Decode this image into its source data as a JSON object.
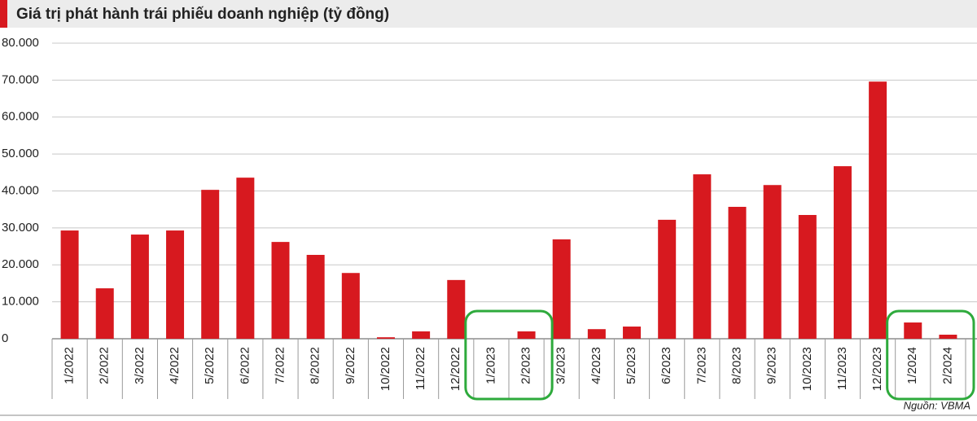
{
  "chart_data": {
    "type": "bar",
    "title": "Giá trị phát hành trái phiếu doanh nghiệp (tỷ đồng)",
    "source": "Nguồn: VBMA",
    "categories": [
      "1/2022",
      "2/2022",
      "3/2022",
      "4/2022",
      "5/2022",
      "6/2022",
      "7/2022",
      "8/2022",
      "9/2022",
      "10/2022",
      "11/2022",
      "12/2022",
      "1/2023",
      "2/2023",
      "3/2023",
      "4/2023",
      "5/2023",
      "6/2023",
      "7/2023",
      "8/2023",
      "9/2023",
      "10/2023",
      "11/2023",
      "12/2023",
      "1/2024",
      "2/2024"
    ],
    "values": [
      29300,
      13650,
      28200,
      29300,
      40300,
      43600,
      26200,
      22700,
      17800,
      400,
      2000,
      15900,
      0,
      2000,
      26900,
      2600,
      3300,
      32200,
      44500,
      35700,
      41600,
      33500,
      46700,
      69600,
      4400,
      1100
    ],
    "color": "#d7191f",
    "ylim": [
      0,
      80000
    ],
    "yticks": [
      0,
      {
        "value": 10000,
        "label": "10.000"
      },
      {
        "value": 20000,
        "label": "20.000"
      },
      {
        "value": 30000,
        "label": "30.000"
      },
      {
        "value": 40000,
        "label": "40.000"
      },
      {
        "value": 50000,
        "label": "50.000"
      },
      {
        "value": 60000,
        "label": "60.000"
      },
      {
        "value": 70000,
        "label": "70.000"
      },
      {
        "value": 80000,
        "label": "80.000"
      }
    ],
    "grid": true
  }
}
